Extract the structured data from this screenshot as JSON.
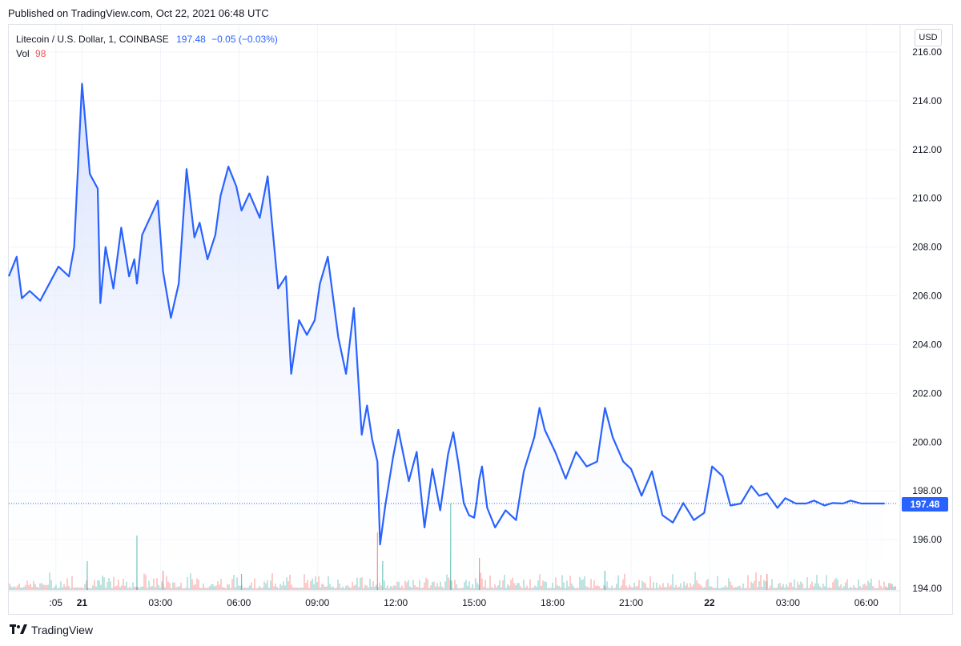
{
  "header": {
    "published": "Published on TradingView.com, Oct 22, 2021 06:48 UTC"
  },
  "legend": {
    "symbol": "Litecoin / U.S. Dollar, 1, COINBASE",
    "price": "197.48",
    "change": "−0.05 (−0.03%)",
    "vol_label": "Vol",
    "vol_value": "98"
  },
  "price_scale": {
    "currency": "USD",
    "last_price_label": "197.48"
  },
  "brand": {
    "name": "TradingView",
    "icon": "tradingview-logo-icon"
  },
  "colors": {
    "line": "#2962ff",
    "fill": "#e3eafe",
    "vol_up": "#26a69a",
    "vol_down": "#ef5350",
    "grid": "#f0f3fa"
  },
  "chart_data": {
    "type": "area",
    "title": "Litecoin / U.S. Dollar, 1, COINBASE",
    "ylim": [
      194,
      216
    ],
    "yticks": [
      "216.00",
      "214.00",
      "212.00",
      "210.00",
      "208.00",
      "206.00",
      "204.00",
      "202.00",
      "200.00",
      "198.00",
      "196.00",
      "194.00"
    ],
    "xticks": [
      {
        "h": -1,
        "label": ":05",
        "bold": false
      },
      {
        "h": 0,
        "label": "21",
        "bold": true
      },
      {
        "h": 3,
        "label": "03:00",
        "bold": false
      },
      {
        "h": 6,
        "label": "06:00",
        "bold": false
      },
      {
        "h": 9,
        "label": "09:00",
        "bold": false
      },
      {
        "h": 12,
        "label": "12:00",
        "bold": false
      },
      {
        "h": 15,
        "label": "15:00",
        "bold": false
      },
      {
        "h": 18,
        "label": "18:00",
        "bold": false
      },
      {
        "h": 21,
        "label": "21:00",
        "bold": false
      },
      {
        "h": 24,
        "label": "22",
        "bold": true
      },
      {
        "h": 27,
        "label": "03:00",
        "bold": false
      },
      {
        "h": 30,
        "label": "06:00",
        "bold": false
      }
    ],
    "x_hours": [
      -2.8,
      -2.5,
      -2.3,
      -2.0,
      -1.6,
      -1.2,
      -0.9,
      -0.5,
      -0.3,
      0.0,
      0.3,
      0.6,
      0.7,
      0.9,
      1.2,
      1.5,
      1.8,
      2.0,
      2.1,
      2.3,
      2.6,
      2.9,
      3.1,
      3.4,
      3.7,
      4.0,
      4.3,
      4.5,
      4.8,
      5.1,
      5.3,
      5.6,
      5.9,
      6.1,
      6.4,
      6.8,
      7.1,
      7.5,
      7.8,
      8.0,
      8.3,
      8.6,
      8.9,
      9.1,
      9.4,
      9.8,
      10.1,
      10.4,
      10.7,
      10.9,
      11.1,
      11.3,
      11.4,
      11.6,
      11.9,
      12.1,
      12.5,
      12.8,
      13.1,
      13.4,
      13.7,
      14.0,
      14.2,
      14.4,
      14.6,
      14.8,
      15.0,
      15.1,
      15.2,
      15.3,
      15.5,
      15.8,
      16.2,
      16.6,
      16.9,
      17.3,
      17.5,
      17.7,
      18.1,
      18.5,
      18.9,
      19.3,
      19.7,
      20.0,
      20.3,
      20.7,
      21.0,
      21.4,
      21.8,
      22.2,
      22.6,
      23.0,
      23.4,
      23.8,
      24.1,
      24.5,
      24.8,
      25.2,
      25.6,
      25.9,
      26.2,
      26.6,
      26.9,
      27.3,
      27.7,
      28.0,
      28.4,
      28.7,
      29.1,
      29.4,
      29.8,
      30.1,
      30.4,
      30.6,
      30.7
    ],
    "y": [
      206.8,
      207.6,
      205.9,
      206.2,
      205.8,
      206.6,
      207.2,
      206.8,
      208.0,
      214.7,
      211.0,
      210.4,
      205.7,
      208.0,
      206.3,
      208.8,
      206.8,
      207.5,
      206.5,
      208.5,
      209.2,
      209.9,
      207.0,
      205.1,
      206.5,
      211.2,
      208.4,
      209.0,
      207.5,
      208.5,
      210.1,
      211.3,
      210.5,
      209.5,
      210.2,
      209.2,
      210.9,
      206.3,
      206.8,
      202.8,
      205.0,
      204.4,
      205.0,
      206.5,
      207.6,
      204.3,
      202.8,
      205.5,
      200.3,
      201.5,
      200.1,
      199.2,
      195.8,
      197.4,
      199.4,
      200.5,
      198.4,
      199.6,
      196.5,
      198.9,
      197.2,
      199.5,
      200.4,
      199.1,
      197.5,
      197.0,
      196.9,
      197.6,
      198.5,
      199.0,
      197.3,
      196.5,
      197.2,
      196.8,
      198.8,
      200.2,
      201.4,
      200.5,
      199.6,
      198.5,
      199.6,
      199.0,
      199.2,
      201.4,
      200.2,
      199.2,
      198.9,
      197.8,
      198.8,
      197.0,
      196.7,
      197.5,
      196.8,
      197.1,
      199.0,
      198.6,
      197.4,
      197.48,
      198.2,
      197.8,
      197.9,
      197.3,
      197.7,
      197.48,
      197.48,
      197.6,
      197.4,
      197.5,
      197.48,
      197.6,
      197.48,
      197.48,
      197.48,
      197.48,
      197.48
    ],
    "volume_spikes": [
      {
        "h": 0.2,
        "v": 0.9,
        "up": true
      },
      {
        "h": 2.1,
        "v": 1.7,
        "up": true
      },
      {
        "h": 3.1,
        "v": 0.6,
        "up": false
      },
      {
        "h": 6.1,
        "v": 0.5,
        "up": true
      },
      {
        "h": 11.3,
        "v": 1.8,
        "up": false
      },
      {
        "h": 11.5,
        "v": 0.9,
        "up": true
      },
      {
        "h": 14.1,
        "v": 2.7,
        "up": true
      },
      {
        "h": 15.2,
        "v": 1.0,
        "up": false
      },
      {
        "h": 20.0,
        "v": 0.6,
        "up": true
      },
      {
        "h": 26.2,
        "v": 0.5,
        "up": false
      }
    ]
  }
}
